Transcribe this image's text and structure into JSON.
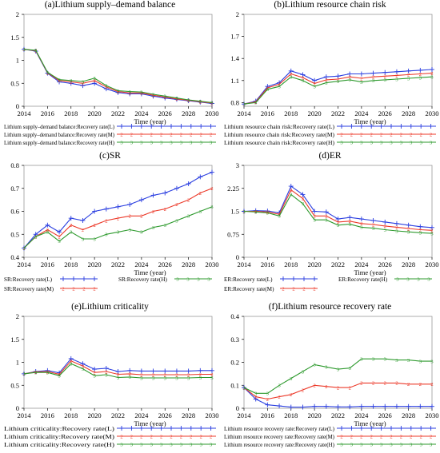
{
  "colors": {
    "L": "#2b3fe0",
    "M": "#ec3a2a",
    "H": "#2e9a2e",
    "axis": "#000000",
    "frame": "#999999"
  },
  "chart_data": [
    {
      "type": "line",
      "title": "(a)Lithium supply–demand balance",
      "xlabel": "Time (year)",
      "xlim": [
        2014,
        2030
      ],
      "ylim": [
        0,
        2
      ],
      "xticks": [
        "2014",
        "2016",
        "2018",
        "2020",
        "2022",
        "2024",
        "2026",
        "2028",
        "2030"
      ],
      "yticks": [
        "0",
        "0.5",
        "1",
        "1.5",
        "2"
      ],
      "legend_layout": "stacked",
      "x": [
        2014,
        2015,
        2016,
        2017,
        2018,
        2019,
        2020,
        2021,
        2022,
        2023,
        2024,
        2025,
        2026,
        2027,
        2028,
        2029,
        2030
      ],
      "series": [
        {
          "name": "Lithium supply–demand balance:Recovery rate(L)",
          "key": "L",
          "marker": "+",
          "values": [
            1.24,
            1.2,
            0.72,
            0.53,
            0.5,
            0.45,
            0.5,
            0.38,
            0.3,
            0.27,
            0.27,
            0.22,
            0.18,
            0.15,
            0.12,
            0.09,
            0.06
          ]
        },
        {
          "name": "Lithium supply–demand balance:Recovery rate(M)",
          "key": "M",
          "marker": "2",
          "values": [
            1.24,
            1.21,
            0.73,
            0.56,
            0.53,
            0.5,
            0.56,
            0.42,
            0.32,
            0.29,
            0.29,
            0.24,
            0.2,
            0.16,
            0.13,
            0.1,
            0.07
          ]
        },
        {
          "name": "Lithium supply–demand balance:Recovery rate(H)",
          "key": "H",
          "marker": "3",
          "values": [
            1.24,
            1.22,
            0.74,
            0.58,
            0.56,
            0.54,
            0.61,
            0.45,
            0.34,
            0.32,
            0.31,
            0.26,
            0.22,
            0.18,
            0.14,
            0.11,
            0.08
          ]
        }
      ]
    },
    {
      "type": "line",
      "title": "(b)Lithium resource chain risk",
      "xlabel": "Time (year)",
      "xlim": [
        2014,
        2030
      ],
      "ylim": [
        0.75,
        2
      ],
      "xticks": [
        "2014",
        "2016",
        "2018",
        "2020",
        "2022",
        "2024",
        "2026",
        "2028",
        "2030"
      ],
      "yticks": [
        "0.8",
        "1.1",
        "1.4",
        "1.7",
        "2"
      ],
      "legend_layout": "stacked",
      "x": [
        2014,
        2015,
        2016,
        2017,
        2018,
        2019,
        2020,
        2021,
        2022,
        2023,
        2024,
        2025,
        2026,
        2027,
        2028,
        2029,
        2030
      ],
      "series": [
        {
          "name": "Lithium resource chain risk:Recovery rate(L)",
          "key": "L",
          "marker": "+",
          "values": [
            0.78,
            0.82,
            1.02,
            1.07,
            1.23,
            1.18,
            1.1,
            1.15,
            1.16,
            1.19,
            1.19,
            1.2,
            1.21,
            1.22,
            1.23,
            1.24,
            1.25
          ]
        },
        {
          "name": "Lithium resource chain risk:Recovery rate(M)",
          "key": "M",
          "marker": "2",
          "values": [
            0.78,
            0.81,
            1.0,
            1.05,
            1.19,
            1.14,
            1.06,
            1.11,
            1.12,
            1.15,
            1.13,
            1.15,
            1.16,
            1.17,
            1.18,
            1.19,
            1.2
          ]
        },
        {
          "name": "Lithium resource chain risk:Recovery rate(H)",
          "key": "H",
          "marker": "3",
          "values": [
            0.78,
            0.8,
            0.98,
            1.02,
            1.15,
            1.1,
            1.02,
            1.07,
            1.09,
            1.11,
            1.08,
            1.1,
            1.11,
            1.12,
            1.13,
            1.14,
            1.15
          ]
        }
      ]
    },
    {
      "type": "line",
      "title": "(c)SR",
      "xlabel": "Time (year)",
      "xlim": [
        2014,
        2030
      ],
      "ylim": [
        0.4,
        0.8
      ],
      "xticks": [
        "2014",
        "2016",
        "2018",
        "2020",
        "2022",
        "2024",
        "2026",
        "2028",
        "2030"
      ],
      "yticks": [
        "0.4",
        "0.5",
        "0.6",
        "0.7",
        "0.8"
      ],
      "legend_layout": "grid",
      "x": [
        2014,
        2015,
        2016,
        2017,
        2018,
        2019,
        2020,
        2021,
        2022,
        2023,
        2024,
        2025,
        2026,
        2027,
        2028,
        2029,
        2030
      ],
      "series": [
        {
          "name": "SR:Recovery rate(L)",
          "key": "L",
          "marker": "+",
          "values": [
            0.44,
            0.5,
            0.54,
            0.51,
            0.57,
            0.56,
            0.6,
            0.61,
            0.62,
            0.63,
            0.65,
            0.67,
            0.68,
            0.7,
            0.72,
            0.75,
            0.77
          ]
        },
        {
          "name": "SR:Recovery rate(M)",
          "key": "M",
          "marker": "2",
          "values": [
            0.44,
            0.49,
            0.52,
            0.49,
            0.54,
            0.52,
            0.54,
            0.56,
            0.57,
            0.58,
            0.58,
            0.6,
            0.61,
            0.63,
            0.65,
            0.68,
            0.7
          ]
        },
        {
          "name": "SR:Recovery rate(H)",
          "key": "H",
          "marker": "3",
          "values": [
            0.44,
            0.49,
            0.51,
            0.47,
            0.51,
            0.48,
            0.48,
            0.5,
            0.51,
            0.52,
            0.51,
            0.53,
            0.54,
            0.56,
            0.58,
            0.6,
            0.62
          ]
        }
      ]
    },
    {
      "type": "line",
      "title": "(d)ER",
      "xlabel": "Time (year)",
      "xlim": [
        2014,
        2030
      ],
      "ylim": [
        0,
        3
      ],
      "xticks": [
        "2014",
        "2016",
        "2018",
        "2020",
        "2022",
        "2024",
        "2026",
        "2028",
        "2030"
      ],
      "yticks": [
        "0",
        "0.75",
        "1.5",
        "2.25",
        "3"
      ],
      "legend_layout": "grid",
      "x": [
        2014,
        2015,
        2016,
        2017,
        2018,
        2019,
        2020,
        2021,
        2022,
        2023,
        2024,
        2025,
        2026,
        2027,
        2028,
        2029,
        2030
      ],
      "series": [
        {
          "name": "ER:Recovery rate(L)",
          "key": "L",
          "marker": "+",
          "values": [
            1.5,
            1.52,
            1.51,
            1.45,
            2.32,
            2.05,
            1.5,
            1.48,
            1.25,
            1.3,
            1.25,
            1.2,
            1.15,
            1.1,
            1.05,
            1.0,
            0.97
          ]
        },
        {
          "name": "ER:Recovery rate(M)",
          "key": "M",
          "marker": "2",
          "values": [
            1.5,
            1.5,
            1.48,
            1.4,
            2.2,
            1.92,
            1.35,
            1.35,
            1.15,
            1.18,
            1.1,
            1.07,
            1.02,
            0.98,
            0.94,
            0.9,
            0.88
          ]
        },
        {
          "name": "ER:Recovery rate(H)",
          "key": "H",
          "marker": "3",
          "values": [
            1.5,
            1.48,
            1.45,
            1.35,
            2.05,
            1.75,
            1.22,
            1.22,
            1.05,
            1.08,
            0.98,
            0.95,
            0.9,
            0.86,
            0.83,
            0.8,
            0.78
          ]
        }
      ]
    },
    {
      "type": "line",
      "title": "(e)Lithium criticality",
      "xlabel": "Time (year)",
      "xlim": [
        2014,
        2030
      ],
      "ylim": [
        0,
        2
      ],
      "xticks": [
        "2014",
        "2016",
        "2018",
        "2020",
        "2022",
        "2024",
        "2026",
        "2028",
        "2030"
      ],
      "yticks": [
        "0",
        "0.5",
        "1",
        "1.5",
        "2"
      ],
      "legend_layout": "stacked",
      "x": [
        2014,
        2015,
        2016,
        2017,
        2018,
        2019,
        2020,
        2021,
        2022,
        2023,
        2024,
        2025,
        2026,
        2027,
        2028,
        2029,
        2030
      ],
      "series": [
        {
          "name": "Lithium criticality:Recovery rate(L)",
          "key": "L",
          "marker": "+",
          "values": [
            0.75,
            0.8,
            0.82,
            0.77,
            1.08,
            0.97,
            0.85,
            0.87,
            0.8,
            0.82,
            0.81,
            0.81,
            0.81,
            0.81,
            0.81,
            0.82,
            0.82
          ]
        },
        {
          "name": "Lithium criticality:Recovery rate(M)",
          "key": "M",
          "marker": "2",
          "values": [
            0.75,
            0.79,
            0.8,
            0.74,
            1.03,
            0.92,
            0.78,
            0.8,
            0.74,
            0.75,
            0.73,
            0.73,
            0.73,
            0.73,
            0.73,
            0.74,
            0.74
          ]
        },
        {
          "name": "Lithium criticality:Recovery rate(H)",
          "key": "H",
          "marker": "3",
          "values": [
            0.75,
            0.78,
            0.78,
            0.71,
            0.97,
            0.86,
            0.71,
            0.73,
            0.67,
            0.68,
            0.66,
            0.66,
            0.66,
            0.66,
            0.66,
            0.67,
            0.67
          ]
        }
      ]
    },
    {
      "type": "line",
      "title": "(f)Lithium resource recovery rate",
      "xlabel": "Time (year)",
      "xlim": [
        2014,
        2030
      ],
      "ylim": [
        0,
        0.4
      ],
      "xticks": [
        "2014",
        "2016",
        "2018",
        "2020",
        "2022",
        "2024",
        "2026",
        "2028",
        "2030"
      ],
      "yticks": [
        "0",
        "0.1",
        "0.2",
        "0.3",
        "0.4"
      ],
      "legend_layout": "stacked",
      "x": [
        2014,
        2015,
        2016,
        2017,
        2018,
        2019,
        2020,
        2021,
        2022,
        2023,
        2024,
        2025,
        2026,
        2027,
        2028,
        2029,
        2030
      ],
      "series": [
        {
          "name": "Lithium resource recovery rate:Recovery rate(L)",
          "key": "L",
          "marker": "+",
          "values": [
            0.09,
            0.04,
            0.015,
            0.01,
            0.005,
            0.005,
            0.008,
            0.008,
            0.006,
            0.006,
            0.008,
            0.008,
            0.008,
            0.008,
            0.008,
            0.008,
            0.008
          ]
        },
        {
          "name": "Lithium resource recovery rate:Recovery rate(M)",
          "key": "M",
          "marker": "2",
          "values": [
            0.09,
            0.05,
            0.04,
            0.05,
            0.06,
            0.08,
            0.1,
            0.095,
            0.09,
            0.09,
            0.11,
            0.11,
            0.11,
            0.11,
            0.105,
            0.105,
            0.105
          ]
        },
        {
          "name": "Lithium resource recovery rate:Recovery rate(H)",
          "key": "H",
          "marker": "3",
          "values": [
            0.09,
            0.065,
            0.065,
            0.1,
            0.13,
            0.16,
            0.19,
            0.18,
            0.17,
            0.175,
            0.215,
            0.215,
            0.215,
            0.21,
            0.21,
            0.205,
            0.205
          ]
        }
      ]
    }
  ]
}
